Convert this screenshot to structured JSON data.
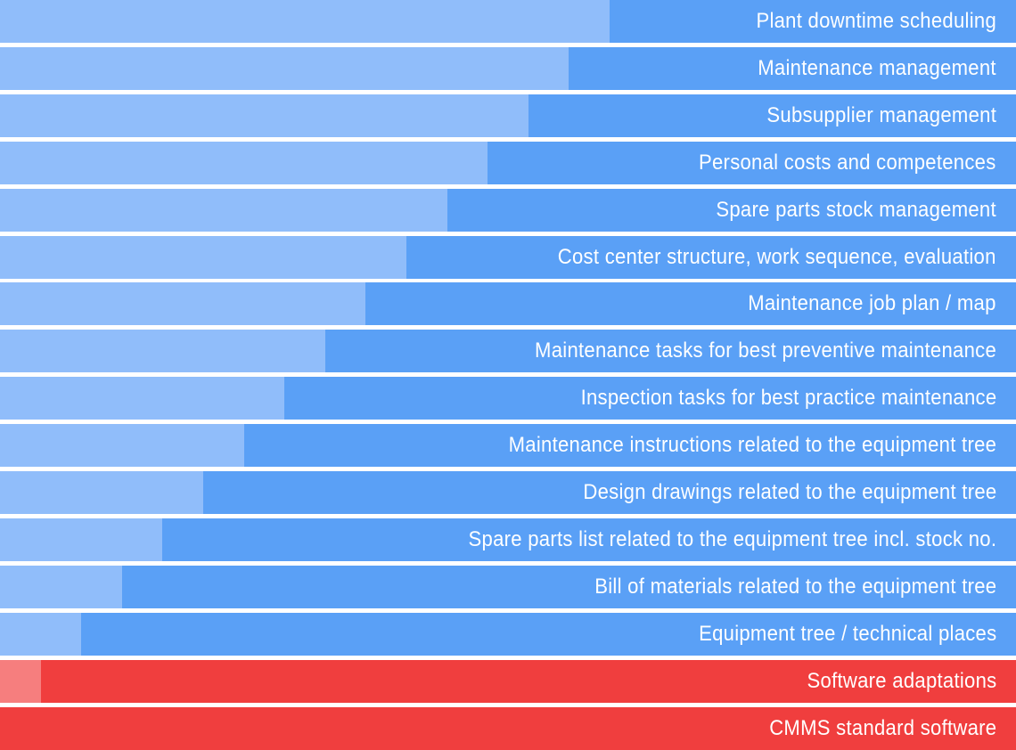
{
  "colors": {
    "blue_light": "#90bdfa",
    "blue_dark": "#5aa0f6",
    "red_light": "#f67e7e",
    "red_dark": "#f03e3e"
  },
  "layers": [
    {
      "label": "Plant downtime scheduling",
      "offset_fraction": 0.6,
      "color": "blue"
    },
    {
      "label": "Maintenance management",
      "offset_fraction": 0.56,
      "color": "blue"
    },
    {
      "label": "Subsupplier management",
      "offset_fraction": 0.52,
      "color": "blue"
    },
    {
      "label": "Personal costs and competences",
      "offset_fraction": 0.48,
      "color": "blue"
    },
    {
      "label": "Spare parts stock management",
      "offset_fraction": 0.44,
      "color": "blue"
    },
    {
      "label": "Cost center structure, work sequence, evaluation",
      "offset_fraction": 0.4,
      "color": "blue"
    },
    {
      "label": "Maintenance job plan / map",
      "offset_fraction": 0.36,
      "color": "blue"
    },
    {
      "label": "Maintenance tasks for best preventive maintenance",
      "offset_fraction": 0.32,
      "color": "blue"
    },
    {
      "label": "Inspection tasks for best practice maintenance",
      "offset_fraction": 0.28,
      "color": "blue"
    },
    {
      "label": "Maintenance instructions related to the equipment tree",
      "offset_fraction": 0.24,
      "color": "blue"
    },
    {
      "label": "Design drawings related to the equipment tree",
      "offset_fraction": 0.2,
      "color": "blue"
    },
    {
      "label": "Spare parts list related to the equipment tree incl. stock no.",
      "offset_fraction": 0.16,
      "color": "blue"
    },
    {
      "label": "Bill of materials related to the equipment tree",
      "offset_fraction": 0.12,
      "color": "blue"
    },
    {
      "label": "Equipment tree / technical places",
      "offset_fraction": 0.08,
      "color": "blue"
    },
    {
      "label": "Software adaptations",
      "offset_fraction": 0.04,
      "color": "red"
    },
    {
      "label": "CMMS standard software",
      "offset_fraction": 0.0,
      "color": "red"
    }
  ]
}
